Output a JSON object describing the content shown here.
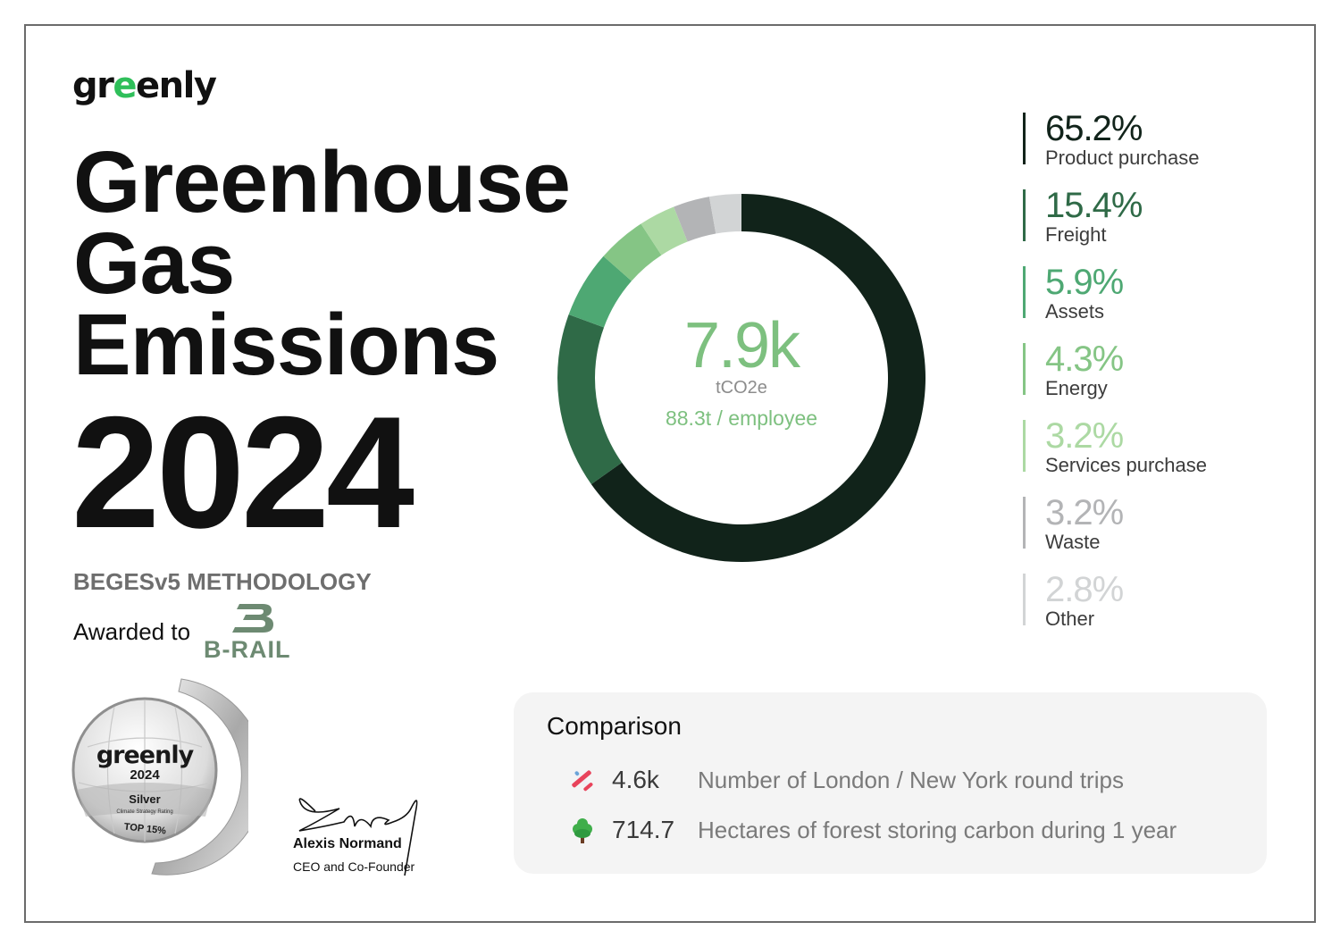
{
  "brand": {
    "logo_prefix": "gr",
    "logo_leaf": "e",
    "logo_suffix": "enly",
    "accent_color": "#2fbf5a"
  },
  "header": {
    "title_lines": [
      "Greenhouse",
      "Gas",
      "Emissions"
    ],
    "year": "2024",
    "methodology": "BEGESv5 METHODOLOGY",
    "awarded_to_label": "Awarded to",
    "company_name": "B-RAIL",
    "company_color": "#6d8a72"
  },
  "badge": {
    "brand": "greenly",
    "year": "2024",
    "level": "Silver",
    "subtitle": "Climate Strategy Rating",
    "rank": "TOP 15%"
  },
  "signature": {
    "name": "Alexis Normand",
    "role": "CEO and Co-Founder"
  },
  "summary": {
    "total": "7.9k",
    "unit": "tCO2e",
    "per_employee": "88.3t / employee"
  },
  "legend": {
    "items": [
      {
        "pct": "65.2%",
        "label": "Product purchase",
        "color": "#11231a"
      },
      {
        "pct": "15.4%",
        "label": "Freight",
        "color": "#2f6a47"
      },
      {
        "pct": "5.9%",
        "label": "Assets",
        "color": "#4ea873"
      },
      {
        "pct": "4.3%",
        "label": "Energy",
        "color": "#85c585"
      },
      {
        "pct": "3.2%",
        "label": "Services purchase",
        "color": "#acd9a3"
      },
      {
        "pct": "3.2%",
        "label": "Waste",
        "color": "#b3b4b6"
      },
      {
        "pct": "2.8%",
        "label": "Other",
        "color": "#d2d4d5"
      }
    ]
  },
  "comparison": {
    "title": "Comparison",
    "rows": [
      {
        "icon": "airplane-icon",
        "value": "4.6k",
        "description": "Number of London / New York round trips"
      },
      {
        "icon": "tree-icon",
        "value": "714.7",
        "description": "Hectares of forest storing carbon during 1 year"
      }
    ]
  },
  "chart_data": {
    "type": "pie",
    "variant": "donut",
    "title": "Greenhouse Gas Emissions 2024",
    "center_label": "7.9k tCO2e",
    "center_sublabel": "88.3t / employee",
    "start_angle": "12 o'clock, clockwise",
    "categories": [
      "Product purchase",
      "Freight",
      "Assets",
      "Energy",
      "Services purchase",
      "Waste",
      "Other"
    ],
    "values": [
      65.2,
      15.4,
      5.9,
      4.3,
      3.2,
      3.2,
      2.8
    ],
    "colors": [
      "#11231a",
      "#2f6a47",
      "#4ea873",
      "#85c585",
      "#acd9a3",
      "#b3b4b6",
      "#d2d4d5"
    ],
    "unit": "%",
    "legend_position": "right"
  }
}
